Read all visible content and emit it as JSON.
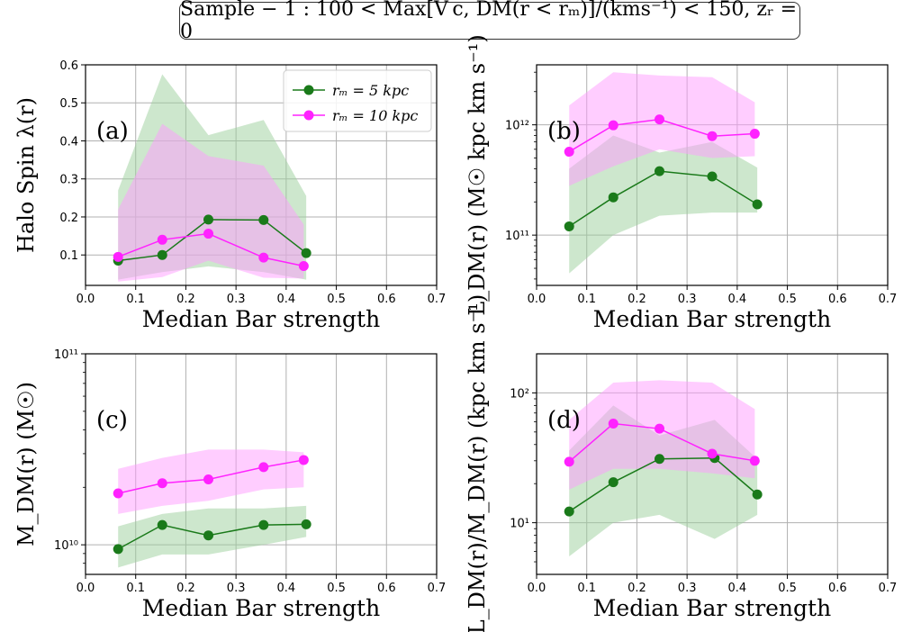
{
  "title": "Sample − 1 : 100 < Max[V c, DM(r < rₘ)]/(kms⁻¹) < 150,  zᵣ = 0",
  "legend": [
    {
      "label": "rₘ = 5 kpc",
      "color": "#1a7a1a"
    },
    {
      "label": "rₘ = 10 kpc",
      "color": "#ff22ff"
    }
  ],
  "chart_data": [
    {
      "type": "line",
      "panel_label": "(a)",
      "xlabel": "Median Bar strength",
      "ylabel": "Halo Spin λ(r)",
      "xlim": [
        0.0,
        0.7
      ],
      "ylim": [
        0.02,
        0.6
      ],
      "yscale": "linear",
      "xticks": [
        0.0,
        0.1,
        0.2,
        0.3,
        0.4,
        0.5,
        0.6,
        0.7
      ],
      "yticks": [
        0.1,
        0.2,
        0.3,
        0.4,
        0.5,
        0.6
      ],
      "grid": true,
      "legend_position": "top-right",
      "series": [
        {
          "name": "rₘ = 5 kpc",
          "color": "#1a7a1a",
          "band_color": "#9ccf9c",
          "x": [
            0.065,
            0.153,
            0.245,
            0.355,
            0.44
          ],
          "values": [
            0.085,
            0.1,
            0.193,
            0.192,
            0.105
          ],
          "lower": [
            0.035,
            0.055,
            0.07,
            0.055,
            0.035
          ],
          "upper": [
            0.27,
            0.575,
            0.415,
            0.455,
            0.255
          ]
        },
        {
          "name": "rₘ = 10 kpc",
          "color": "#ff22ff",
          "band_color": "#ff9cff",
          "x": [
            0.065,
            0.153,
            0.245,
            0.355,
            0.435
          ],
          "values": [
            0.095,
            0.14,
            0.156,
            0.093,
            0.071
          ],
          "lower": [
            0.03,
            0.042,
            0.085,
            0.04,
            0.038
          ],
          "upper": [
            0.22,
            0.445,
            0.36,
            0.335,
            0.18
          ]
        }
      ]
    },
    {
      "type": "line",
      "panel_label": "(b)",
      "xlabel": "Median Bar strength",
      "ylabel": "L_DM(r) (M☉ kpc km s⁻¹)",
      "xlim": [
        0.0,
        0.7
      ],
      "ylim": [
        35000000000.0,
        3500000000000.0
      ],
      "yscale": "log",
      "xticks": [
        0.0,
        0.1,
        0.2,
        0.3,
        0.4,
        0.5,
        0.6,
        0.7
      ],
      "ytick_labels": [
        {
          "value": 100000000000.0,
          "label": "10¹¹"
        },
        {
          "value": 1000000000000.0,
          "label": "10¹²"
        }
      ],
      "grid": true,
      "series": [
        {
          "name": "rₘ = 5 kpc",
          "color": "#1a7a1a",
          "band_color": "#9ccf9c",
          "x": [
            0.065,
            0.153,
            0.245,
            0.35,
            0.44
          ],
          "values": [
            120000000000.0,
            220000000000.0,
            380000000000.0,
            340000000000.0,
            190000000000.0
          ],
          "lower": [
            45000000000.0,
            100000000000.0,
            150000000000.0,
            160000000000.0,
            160000000000.0
          ],
          "upper": [
            400000000000.0,
            800000000000.0,
            560000000000.0,
            700000000000.0,
            410000000000.0
          ]
        },
        {
          "name": "rₘ = 10 kpc",
          "color": "#ff22ff",
          "band_color": "#ff9cff",
          "x": [
            0.065,
            0.153,
            0.245,
            0.35,
            0.435
          ],
          "values": [
            570000000000.0,
            990000000000.0,
            1120000000000.0,
            790000000000.0,
            830000000000.0
          ],
          "lower": [
            280000000000.0,
            420000000000.0,
            600000000000.0,
            500000000000.0,
            520000000000.0
          ],
          "upper": [
            1500000000000.0,
            3000000000000.0,
            2800000000000.0,
            2700000000000.0,
            1600000000000.0
          ]
        }
      ]
    },
    {
      "type": "line",
      "panel_label": "(c)",
      "xlabel": "Median Bar strength",
      "ylabel": "M_DM(r) (M☉)",
      "xlim": [
        0.0,
        0.7
      ],
      "ylim": [
        7000000000.0,
        100000000000.0
      ],
      "yscale": "log",
      "xticks": [
        0.0,
        0.1,
        0.2,
        0.3,
        0.4,
        0.5,
        0.6,
        0.7
      ],
      "ytick_labels": [
        {
          "value": 10000000000.0,
          "label": "10¹⁰"
        },
        {
          "value": 100000000000.0,
          "label": "10¹¹"
        }
      ],
      "grid": true,
      "series": [
        {
          "name": "rₘ = 5 kpc",
          "color": "#1a7a1a",
          "band_color": "#9ccf9c",
          "x": [
            0.065,
            0.153,
            0.245,
            0.355,
            0.44
          ],
          "values": [
            9500000000.0,
            12700000000.0,
            11200000000.0,
            12700000000.0,
            12800000000.0
          ],
          "lower": [
            7600000000.0,
            8900000000.0,
            8900000000.0,
            10000000000.0,
            11000000000.0
          ],
          "upper": [
            12500000000.0,
            14500000000.0,
            15500000000.0,
            15500000000.0,
            16000000000.0
          ]
        },
        {
          "name": "rₘ = 10 kpc",
          "color": "#ff22ff",
          "band_color": "#ff9cff",
          "x": [
            0.065,
            0.153,
            0.245,
            0.355,
            0.435
          ],
          "values": [
            18600000000.0,
            21000000000.0,
            22000000000.0,
            25500000000.0,
            27800000000.0
          ],
          "lower": [
            14500000000.0,
            16000000000.0,
            17000000000.0,
            19500000000.0,
            20000000000.0
          ],
          "upper": [
            25000000000.0,
            28500000000.0,
            31500000000.0,
            31500000000.0,
            30500000000.0
          ]
        }
      ]
    },
    {
      "type": "line",
      "panel_label": "(d)",
      "xlabel": "Median Bar strength",
      "ylabel": "L_DM(r)/M_DM(r) (kpc km s⁻¹)",
      "xlim": [
        0.0,
        0.7
      ],
      "ylim": [
        4.0,
        200
      ],
      "yscale": "log",
      "xticks": [
        0.0,
        0.1,
        0.2,
        0.3,
        0.4,
        0.5,
        0.6,
        0.7
      ],
      "ytick_labels": [
        {
          "value": 10,
          "label": "10¹"
        },
        {
          "value": 100,
          "label": "10²"
        }
      ],
      "grid": true,
      "series": [
        {
          "name": "rₘ = 5 kpc",
          "color": "#1a7a1a",
          "band_color": "#9ccf9c",
          "x": [
            0.065,
            0.153,
            0.245,
            0.355,
            0.44
          ],
          "values": [
            12.2,
            20.5,
            31.0,
            31.5,
            16.5
          ],
          "lower": [
            5.5,
            10.0,
            11.5,
            7.5,
            11.5
          ],
          "upper": [
            36.0,
            80.0,
            47.0,
            62.0,
            31.0
          ]
        },
        {
          "name": "rₘ = 10 kpc",
          "color": "#ff22ff",
          "band_color": "#ff9cff",
          "x": [
            0.065,
            0.153,
            0.245,
            0.35,
            0.435
          ],
          "values": [
            29.5,
            58.0,
            53.0,
            34.0,
            30.0
          ],
          "lower": [
            18.0,
            26.0,
            26.0,
            24.0,
            22.0
          ],
          "upper": [
            62.0,
            120.0,
            125.0,
            120.0,
            75.0
          ]
        }
      ]
    }
  ]
}
